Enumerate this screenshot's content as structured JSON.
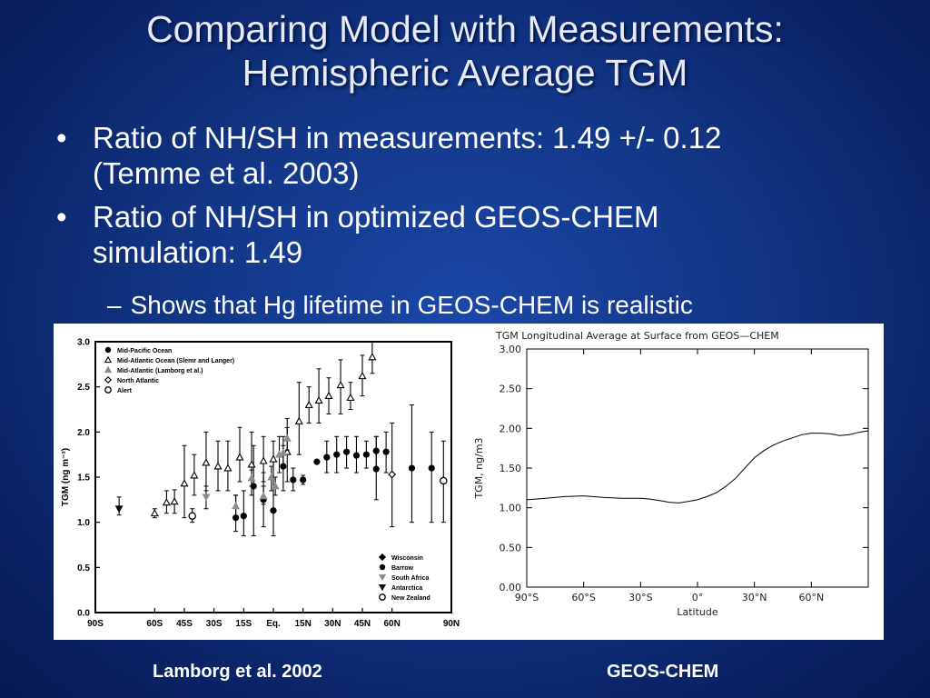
{
  "slide": {
    "title_line1": "Comparing Model with Measurements:",
    "title_line2": "Hemispheric Average TGM",
    "bullet_char": "•",
    "bullets": [
      {
        "line1": "Ratio of NH/SH in measurements: 1.49 +/- 0.12",
        "line2": "(Temme et al. 2003)"
      },
      {
        "line1": "Ratio of NH/SH in optimized GEOS-CHEM",
        "line2": "simulation: 1.49"
      }
    ],
    "sub_dash": "–",
    "sub_bullet": "Shows that Hg lifetime in GEOS-CHEM is realistic",
    "caption_left": "Lamborg et al. 2002",
    "caption_right": "GEOS-CHEM"
  },
  "chart_data": [
    {
      "type": "scatter",
      "ylabel": "TGM (ng m⁻³)",
      "ylim": [
        0.0,
        3.0
      ],
      "yticks": [
        "0.0",
        "0.5",
        "1.0",
        "1.5",
        "2.0",
        "2.5",
        "3.0"
      ],
      "xlim": [
        -90,
        90
      ],
      "xticks": [
        {
          "v": -90,
          "label": "90S"
        },
        {
          "v": -60,
          "label": "60S"
        },
        {
          "v": -45,
          "label": "45S"
        },
        {
          "v": -30,
          "label": "30S"
        },
        {
          "v": -15,
          "label": "15S"
        },
        {
          "v": 0,
          "label": "Eq."
        },
        {
          "v": 15,
          "label": "15N"
        },
        {
          "v": 30,
          "label": "30N"
        },
        {
          "v": 45,
          "label": "45N"
        },
        {
          "v": 60,
          "label": "60N"
        },
        {
          "v": 90,
          "label": "90N"
        }
      ],
      "legend_top": [
        {
          "marker": "filled-circle",
          "label": "Mid-Pacific Ocean"
        },
        {
          "marker": "open-triangle",
          "label": "Mid-Atlantic Ocean (Slemr and Langer)"
        },
        {
          "marker": "gray-triangle",
          "label": "Mid-Atlantic (Lamborg et al.)"
        },
        {
          "marker": "open-diamond",
          "label": "North Atlantic"
        },
        {
          "marker": "open-circle",
          "label": "Alert"
        }
      ],
      "legend_bottom": [
        {
          "marker": "filled-diamond",
          "label": "Wisconsin"
        },
        {
          "marker": "filled-circle",
          "label": "Barrow"
        },
        {
          "marker": "gray-down-triangle",
          "label": "South Africa"
        },
        {
          "marker": "filled-down-triangle",
          "label": "Antarctica"
        },
        {
          "marker": "open-circle",
          "label": "New Zealand"
        }
      ],
      "series": [
        {
          "name": "Mid-Pacific Ocean",
          "marker": "filled-circle",
          "points": [
            {
              "x": -19,
              "y": 1.05,
              "lo": 0.9,
              "hi": 1.3
            },
            {
              "x": -15,
              "y": 1.07,
              "lo": 0.85,
              "hi": 1.35
            },
            {
              "x": -10,
              "y": 1.4,
              "lo": 0.85,
              "hi": 1.85
            },
            {
              "x": -5,
              "y": 1.25,
              "lo": 0.95,
              "hi": 1.55
            },
            {
              "x": 0,
              "y": 1.13,
              "lo": 0.85,
              "hi": 1.5
            },
            {
              "x": 5,
              "y": 1.62,
              "lo": 1.35,
              "hi": 1.85
            },
            {
              "x": 10,
              "y": 1.47,
              "lo": 1.35,
              "hi": 1.6
            },
            {
              "x": 15,
              "y": 1.47,
              "lo": 1.42,
              "hi": 1.52
            },
            {
              "x": 22,
              "y": 1.67,
              "lo": 1.67,
              "hi": 1.67
            },
            {
              "x": 27,
              "y": 1.72,
              "lo": 1.55,
              "hi": 1.9
            },
            {
              "x": 32,
              "y": 1.75,
              "lo": 1.55,
              "hi": 1.95
            },
            {
              "x": 37,
              "y": 1.78,
              "lo": 1.6,
              "hi": 1.95
            },
            {
              "x": 42,
              "y": 1.74,
              "lo": 1.55,
              "hi": 1.95
            },
            {
              "x": 47,
              "y": 1.75,
              "lo": 1.6,
              "hi": 1.9
            },
            {
              "x": 52,
              "y": 1.79,
              "lo": 1.6,
              "hi": 1.95
            },
            {
              "x": 57,
              "y": 1.78,
              "lo": 1.55,
              "hi": 2.0
            },
            {
              "x": 70,
              "y": 1.6,
              "lo": 1.0,
              "hi": 2.3
            },
            {
              "x": 52,
              "y": 1.59,
              "lo": 1.25,
              "hi": 1.95
            }
          ]
        },
        {
          "name": "Mid-Atlantic Ocean (Slemr and Langer)",
          "marker": "open-triangle",
          "points": [
            {
              "x": -60,
              "y": 1.1,
              "lo": 1.05,
              "hi": 1.15
            },
            {
              "x": -54,
              "y": 1.22,
              "lo": 1.1,
              "hi": 1.35
            },
            {
              "x": -50,
              "y": 1.23,
              "lo": 1.1,
              "hi": 1.36
            },
            {
              "x": -45,
              "y": 1.43,
              "lo": 1.05,
              "hi": 1.85
            },
            {
              "x": -40,
              "y": 1.52,
              "lo": 1.3,
              "hi": 1.75
            },
            {
              "x": -34,
              "y": 1.66,
              "lo": 1.35,
              "hi": 2.0
            },
            {
              "x": -28,
              "y": 1.62,
              "lo": 1.35,
              "hi": 1.9
            },
            {
              "x": -23,
              "y": 1.6,
              "lo": 1.35,
              "hi": 1.9
            },
            {
              "x": -17,
              "y": 1.72,
              "lo": 1.45,
              "hi": 2.05
            },
            {
              "x": -11,
              "y": 1.64,
              "lo": 1.3,
              "hi": 2.0
            },
            {
              "x": -5,
              "y": 1.68,
              "lo": 1.45,
              "hi": 1.95
            },
            {
              "x": 0,
              "y": 1.7,
              "lo": 1.5,
              "hi": 1.9
            },
            {
              "x": 7,
              "y": 1.78,
              "lo": 1.45,
              "hi": 2.15
            },
            {
              "x": 13,
              "y": 2.12,
              "lo": 1.75,
              "hi": 2.55
            },
            {
              "x": 18,
              "y": 2.3,
              "lo": 2.1,
              "hi": 2.5
            },
            {
              "x": 23,
              "y": 2.35,
              "lo": 2.1,
              "hi": 2.7
            },
            {
              "x": 28,
              "y": 2.4,
              "lo": 2.2,
              "hi": 2.6
            },
            {
              "x": 34,
              "y": 2.52,
              "lo": 2.2,
              "hi": 2.8
            },
            {
              "x": 39,
              "y": 2.38,
              "lo": 2.25,
              "hi": 2.55
            },
            {
              "x": 45,
              "y": 2.62,
              "lo": 2.4,
              "hi": 2.85
            },
            {
              "x": 50,
              "y": 2.83,
              "lo": 2.65,
              "hi": 3.0
            }
          ]
        },
        {
          "name": "Mid-Atlantic (Lamborg et al.)",
          "marker": "gray-triangle",
          "points": [
            {
              "x": -19,
              "y": 1.18,
              "lo": 1.05,
              "hi": 1.3
            },
            {
              "x": -11,
              "y": 1.49,
              "lo": 1.4,
              "hi": 1.58
            },
            {
              "x": -5,
              "y": 1.29,
              "lo": 1.2,
              "hi": 1.4
            },
            {
              "x": -1,
              "y": 1.5,
              "lo": 1.35,
              "hi": 1.62
            },
            {
              "x": 3,
              "y": 1.75,
              "lo": 1.55,
              "hi": 1.95
            },
            {
              "x": 5,
              "y": 1.77,
              "lo": 1.6,
              "hi": 1.95
            },
            {
              "x": 7,
              "y": 1.93,
              "lo": 1.8,
              "hi": 2.05
            },
            {
              "x": 1,
              "y": 1.4,
              "lo": 1.3,
              "hi": 1.5
            }
          ]
        },
        {
          "name": "North Atlantic",
          "marker": "open-diamond",
          "points": [
            {
              "x": 60,
              "y": 1.53,
              "lo": 0.95,
              "hi": 2.1
            }
          ]
        },
        {
          "name": "Alert",
          "marker": "open-circle",
          "points": [
            {
              "x": 86,
              "y": 1.46,
              "lo": 1.0,
              "hi": 1.9
            }
          ]
        },
        {
          "name": "Barrow",
          "marker": "filled-circle",
          "points": [
            {
              "x": 80,
              "y": 1.6,
              "lo": 1.0,
              "hi": 2.0
            }
          ]
        },
        {
          "name": "South Africa",
          "marker": "gray-down-triangle",
          "points": [
            {
              "x": -34,
              "y": 1.28,
              "lo": 1.15,
              "hi": 1.4
            }
          ]
        },
        {
          "name": "Antarctica",
          "marker": "filled-down-triangle",
          "points": [
            {
              "x": -78,
              "y": 1.15,
              "lo": 1.08,
              "hi": 1.28
            }
          ]
        },
        {
          "name": "New Zealand",
          "marker": "open-circle",
          "points": [
            {
              "x": -41,
              "y": 1.07,
              "lo": 1.0,
              "hi": 1.15
            }
          ]
        }
      ]
    },
    {
      "type": "line",
      "title": "TGM Longitudinal Average at Surface from GEOS—CHEM",
      "xlabel": "Latitude",
      "ylabel": "TGM, ng/m3",
      "xlim": [
        -90,
        90
      ],
      "ylim": [
        0.0,
        3.0
      ],
      "xticks": [
        {
          "v": -90,
          "label": "90°S"
        },
        {
          "v": -60,
          "label": "60°S"
        },
        {
          "v": -30,
          "label": "30°S"
        },
        {
          "v": 0,
          "label": "0°"
        },
        {
          "v": 30,
          "label": "30°N"
        },
        {
          "v": 60,
          "label": "60°N"
        }
      ],
      "yticks": [
        "0.00",
        "0.50",
        "1.00",
        "1.50",
        "2.00",
        "2.50",
        "3.00"
      ],
      "x": [
        -90,
        -80,
        -70,
        -60,
        -50,
        -40,
        -30,
        -25,
        -20,
        -15,
        -10,
        -5,
        0,
        5,
        10,
        15,
        20,
        25,
        30,
        35,
        40,
        45,
        50,
        55,
        60,
        65,
        70,
        75,
        80,
        85,
        90
      ],
      "series": [
        {
          "values": [
            1.1,
            1.12,
            1.14,
            1.15,
            1.13,
            1.12,
            1.12,
            1.11,
            1.09,
            1.07,
            1.06,
            1.08,
            1.1,
            1.14,
            1.19,
            1.27,
            1.37,
            1.5,
            1.63,
            1.72,
            1.79,
            1.84,
            1.88,
            1.92,
            1.94,
            1.94,
            1.93,
            1.91,
            1.92,
            1.95,
            1.97
          ]
        }
      ]
    }
  ]
}
